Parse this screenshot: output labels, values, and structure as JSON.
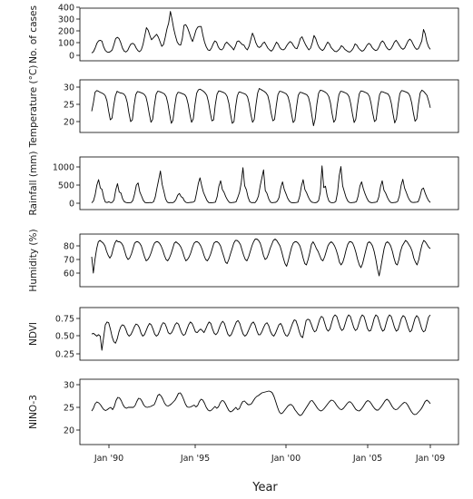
{
  "chart_data": {
    "type": "line",
    "xlabel": "Year",
    "x_ticks": [
      "Jan '90",
      "Jan '95",
      "Jan '00",
      "Jan '05",
      "Jan '09"
    ],
    "x_range": [
      "1989-01",
      "2009-01"
    ],
    "panels": [
      {
        "ylabel": "No. of cases",
        "ylim": [
          0,
          400
        ],
        "yticks": [
          "0",
          "100",
          "200",
          "300",
          "400"
        ],
        "values": [
          20,
          30,
          60,
          100,
          120,
          125,
          118,
          70,
          40,
          28,
          25,
          32,
          45,
          90,
          140,
          150,
          140,
          105,
          60,
          35,
          28,
          40,
          70,
          95,
          100,
          90,
          60,
          40,
          30,
          45,
          90,
          160,
          230,
          210,
          165,
          130,
          145,
          160,
          175,
          150,
          110,
          75,
          90,
          150,
          220,
          270,
          365,
          300,
          220,
          160,
          110,
          90,
          85,
          140,
          250,
          255,
          230,
          190,
          145,
          115,
          160,
          210,
          235,
          240,
          240,
          170,
          110,
          70,
          45,
          40,
          60,
          95,
          120,
          110,
          70,
          50,
          45,
          60,
          95,
          110,
          95,
          80,
          65,
          45,
          75,
          115,
          120,
          105,
          90,
          85,
          60,
          45,
          75,
          130,
          185,
          150,
          105,
          75,
          65,
          75,
          100,
          110,
          85,
          60,
          45,
          35,
          50,
          80,
          110,
          95,
          65,
          50,
          45,
          55,
          80,
          100,
          115,
          105,
          80,
          60,
          55,
          90,
          140,
          155,
          120,
          90,
          65,
          45,
          60,
          105,
          165,
          140,
          95,
          65,
          50,
          40,
          55,
          85,
          110,
          95,
          65,
          50,
          35,
          30,
          40,
          55,
          80,
          70,
          50,
          40,
          30,
          28,
          40,
          60,
          95,
          85,
          60,
          45,
          35,
          40,
          60,
          85,
          100,
          90,
          65,
          50,
          40,
          45,
          70,
          105,
          120,
          105,
          75,
          55,
          45,
          55,
          80,
          110,
          125,
          105,
          80,
          60,
          50,
          60,
          90,
          120,
          135,
          120,
          90,
          65,
          50,
          55,
          85,
          120,
          215,
          180,
          110,
          70,
          50
        ]
      },
      {
        "ylabel": "Temperature (°C)",
        "ylim": [
          18,
          31
        ],
        "yticks": [
          "20",
          "25",
          "30"
        ],
        "values": [
          23,
          25.5,
          28.5,
          29,
          28.8,
          28.5,
          28.3,
          28,
          27.5,
          26,
          23,
          20.5,
          21,
          24.5,
          27.5,
          28.8,
          28.5,
          28.3,
          28.2,
          28,
          27.3,
          25.5,
          22.5,
          20,
          20.5,
          24.5,
          27.8,
          28.7,
          28.6,
          28.4,
          28.2,
          27.9,
          27.2,
          25.2,
          22.3,
          19.8,
          20.6,
          24.6,
          27.9,
          28.8,
          28.7,
          28.5,
          28.3,
          28,
          27.2,
          25.3,
          22.2,
          19.5,
          20.4,
          24.4,
          27.6,
          28.5,
          28.4,
          28.2,
          28,
          27.8,
          27,
          25,
          22,
          19.8,
          20.8,
          25,
          28.2,
          29.2,
          29.4,
          29.1,
          28.8,
          28.3,
          27.6,
          25.6,
          22.6,
          20.2,
          20.5,
          24.8,
          27.9,
          28.9,
          28.8,
          28.6,
          28.4,
          28.1,
          27.3,
          25.3,
          22.2,
          19.5,
          20,
          24.2,
          27.5,
          28.6,
          28.5,
          28.3,
          28.1,
          27.9,
          27.2,
          25.2,
          22.1,
          19.8,
          20.6,
          24.8,
          28.3,
          29.6,
          29.3,
          29,
          28.7,
          28.3,
          27.5,
          25.5,
          22.4,
          20.2,
          20.6,
          24.6,
          27.8,
          28.8,
          28.7,
          28.5,
          28.3,
          28,
          27.2,
          25.2,
          22.2,
          19.7,
          20.4,
          24.4,
          27.6,
          28.5,
          28.4,
          28.2,
          28,
          27.8,
          27.1,
          25.1,
          22,
          18.8,
          20.8,
          25,
          28.2,
          29.1,
          29,
          28.8,
          28.5,
          28.1,
          27.3,
          25.4,
          22.3,
          19.8,
          20.6,
          24.6,
          27.8,
          28.8,
          28.7,
          28.5,
          28.3,
          28,
          27.2,
          25.2,
          22.2,
          19.7,
          20.7,
          24.8,
          28,
          28.9,
          28.8,
          28.6,
          28.4,
          28.1,
          27.3,
          25.3,
          22.4,
          20,
          20.5,
          24.6,
          27.8,
          28.7,
          28.6,
          28.4,
          28.2,
          28,
          27.2,
          25.2,
          22.1,
          19.6,
          20.8,
          25,
          28.1,
          29,
          28.9,
          28.7,
          28.5,
          28.2,
          27.4,
          25.4,
          22.4,
          20.1,
          20.8,
          25,
          28.3,
          29.1,
          28.8,
          28.2,
          27.6,
          26,
          24
        ]
      },
      {
        "ylabel": "Rainfall (mm)",
        "ylim": [
          0,
          1100
        ],
        "yticks": [
          "0",
          "500",
          "1000"
        ],
        "values": [
          10,
          60,
          230,
          500,
          650,
          420,
          380,
          150,
          30,
          20,
          40,
          15,
          25,
          90,
          370,
          540,
          310,
          280,
          120,
          40,
          20,
          10,
          15,
          20,
          80,
          260,
          500,
          560,
          310,
          200,
          80,
          20,
          10,
          15,
          20,
          15,
          40,
          180,
          420,
          650,
          890,
          520,
          330,
          120,
          30,
          10,
          20,
          15,
          35,
          100,
          220,
          270,
          180,
          150,
          60,
          20,
          15,
          20,
          25,
          30,
          60,
          280,
          540,
          700,
          480,
          300,
          190,
          80,
          20,
          10,
          15,
          20,
          30,
          180,
          470,
          620,
          380,
          300,
          180,
          90,
          25,
          15,
          20,
          25,
          40,
          160,
          300,
          560,
          980,
          480,
          370,
          160,
          40,
          15,
          20,
          15,
          80,
          200,
          480,
          690,
          920,
          350,
          270,
          120,
          30,
          15,
          20,
          25,
          60,
          160,
          430,
          590,
          380,
          260,
          140,
          60,
          20,
          10,
          15,
          20,
          30,
          190,
          470,
          650,
          380,
          290,
          170,
          80,
          30,
          20,
          15,
          25,
          70,
          300,
          1030,
          430,
          470,
          200,
          60,
          20,
          15,
          20,
          50,
          300,
          750,
          1010,
          480,
          320,
          160,
          60,
          20,
          15,
          20,
          25,
          45,
          200,
          470,
          590,
          400,
          260,
          150,
          60,
          25,
          15,
          20,
          25,
          40,
          170,
          450,
          620,
          360,
          280,
          160,
          70,
          20,
          15,
          20,
          25,
          50,
          200,
          490,
          660,
          420,
          300,
          170,
          80,
          30,
          20,
          25,
          30,
          45,
          180,
          380,
          420,
          280,
          160,
          70,
          20
        ]
      },
      {
        "ylabel": "Humidity (%)",
        "ylim": [
          56,
          90
        ],
        "yticks": [
          "60",
          "70",
          "80"
        ],
        "values": [
          72,
          60,
          70,
          78,
          83,
          84,
          83,
          82,
          80,
          76,
          73,
          71,
          73,
          78,
          82,
          84,
          83,
          83,
          82,
          80,
          76,
          72,
          70,
          71,
          74,
          78,
          82,
          83,
          83,
          82,
          80,
          76,
          72,
          69,
          70,
          72,
          75,
          79,
          82,
          83,
          83,
          82,
          80,
          77,
          73,
          70,
          69,
          71,
          74,
          78,
          82,
          83,
          82,
          81,
          79,
          76,
          72,
          69,
          70,
          72,
          75,
          79,
          82,
          83,
          83,
          82,
          80,
          77,
          73,
          70,
          69,
          71,
          74,
          78,
          82,
          83,
          83,
          82,
          80,
          76,
          72,
          68,
          67,
          70,
          74,
          78,
          82,
          84,
          84,
          83,
          81,
          77,
          73,
          70,
          69,
          72,
          76,
          80,
          83,
          85,
          85,
          84,
          82,
          78,
          73,
          70,
          71,
          74,
          78,
          81,
          84,
          85,
          84,
          82,
          80,
          76,
          71,
          67,
          65,
          69,
          74,
          79,
          82,
          83,
          83,
          82,
          80,
          76,
          71,
          67,
          66,
          70,
          75,
          81,
          83,
          81,
          78,
          76,
          73,
          70,
          69,
          72,
          76,
          80,
          82,
          83,
          82,
          80,
          77,
          73,
          68,
          66,
          68,
          72,
          77,
          81,
          83,
          83,
          82,
          79,
          75,
          70,
          66,
          64,
          67,
          72,
          77,
          82,
          83,
          82,
          80,
          76,
          70,
          63,
          58,
          64,
          71,
          78,
          82,
          83,
          82,
          80,
          76,
          71,
          67,
          66,
          70,
          76,
          80,
          82,
          84,
          83,
          81,
          79,
          76,
          71,
          68,
          66,
          70,
          76,
          81,
          84,
          83,
          81,
          79,
          78
        ]
      },
      {
        "ylabel": "NDVI",
        "ylim": [
          0.25,
          0.9
        ],
        "yticks": [
          "0.25",
          "0.50",
          "0.75"
        ],
        "values": [
          0.53,
          0.54,
          0.52,
          0.5,
          0.52,
          0.5,
          0.3,
          0.48,
          0.66,
          0.7,
          0.69,
          0.6,
          0.49,
          0.42,
          0.4,
          0.46,
          0.56,
          0.63,
          0.66,
          0.65,
          0.6,
          0.53,
          0.5,
          0.52,
          0.57,
          0.63,
          0.67,
          0.66,
          0.62,
          0.54,
          0.5,
          0.52,
          0.58,
          0.64,
          0.68,
          0.66,
          0.6,
          0.53,
          0.5,
          0.52,
          0.58,
          0.65,
          0.69,
          0.68,
          0.62,
          0.55,
          0.53,
          0.55,
          0.6,
          0.66,
          0.69,
          0.67,
          0.6,
          0.54,
          0.51,
          0.53,
          0.6,
          0.66,
          0.7,
          0.68,
          0.62,
          0.56,
          0.55,
          0.58,
          0.6,
          0.58,
          0.55,
          0.6,
          0.66,
          0.7,
          0.68,
          0.6,
          0.54,
          0.52,
          0.55,
          0.62,
          0.68,
          0.71,
          0.68,
          0.6,
          0.53,
          0.5,
          0.52,
          0.58,
          0.64,
          0.7,
          0.72,
          0.68,
          0.6,
          0.53,
          0.5,
          0.52,
          0.57,
          0.63,
          0.68,
          0.7,
          0.66,
          0.58,
          0.52,
          0.52,
          0.56,
          0.62,
          0.67,
          0.69,
          0.65,
          0.57,
          0.52,
          0.5,
          0.54,
          0.6,
          0.66,
          0.68,
          0.64,
          0.56,
          0.51,
          0.5,
          0.54,
          0.61,
          0.68,
          0.73,
          0.72,
          0.65,
          0.56,
          0.5,
          0.48,
          0.6,
          0.72,
          0.74,
          0.73,
          0.67,
          0.6,
          0.56,
          0.58,
          0.66,
          0.74,
          0.78,
          0.76,
          0.68,
          0.6,
          0.57,
          0.6,
          0.69,
          0.77,
          0.8,
          0.78,
          0.7,
          0.62,
          0.58,
          0.6,
          0.68,
          0.76,
          0.8,
          0.78,
          0.7,
          0.62,
          0.58,
          0.6,
          0.68,
          0.76,
          0.8,
          0.78,
          0.7,
          0.61,
          0.57,
          0.58,
          0.66,
          0.75,
          0.8,
          0.78,
          0.7,
          0.62,
          0.57,
          0.59,
          0.68,
          0.76,
          0.8,
          0.78,
          0.7,
          0.62,
          0.57,
          0.59,
          0.67,
          0.75,
          0.79,
          0.77,
          0.7,
          0.62,
          0.56,
          0.58,
          0.67,
          0.75,
          0.79,
          0.76,
          0.68,
          0.6,
          0.56,
          0.58,
          0.68,
          0.77,
          0.8
        ]
      },
      {
        "ylabel": "NINO-3",
        "ylim": [
          20,
          30
        ],
        "yticks": [
          "20",
          "25",
          "30"
        ],
        "values": [
          24.2,
          24.8,
          25.8,
          26.2,
          26,
          25.6,
          25,
          24.5,
          24.3,
          24.5,
          24.8,
          25,
          24.5,
          25.2,
          26.5,
          27.2,
          27.1,
          26.5,
          25.6,
          25,
          24.8,
          25,
          25,
          25,
          25,
          25.4,
          26.3,
          27,
          26.9,
          26.3,
          25.5,
          25.1,
          25,
          25.1,
          25.2,
          25.4,
          25.6,
          26.5,
          27.6,
          27.9,
          27.5,
          26.8,
          25.9,
          25.4,
          25.3,
          25.5,
          25.8,
          26.2,
          26.6,
          27.3,
          28.1,
          28.2,
          27.6,
          26.7,
          25.7,
          25.1,
          25,
          25.1,
          25.3,
          25.5,
          25.1,
          25.4,
          26.3,
          26.8,
          26.6,
          25.9,
          25,
          24.4,
          24.2,
          24.4,
          24.8,
          25.2,
          24.8,
          25.1,
          26,
          26.5,
          26.4,
          25.8,
          25,
          24.3,
          24,
          24.2,
          24.6,
          25,
          24.5,
          24.7,
          25.6,
          26.3,
          26.4,
          26,
          25.6,
          25.6,
          25.8,
          26.4,
          27,
          27.4,
          27.6,
          27.9,
          28.2,
          28.3,
          28.4,
          28.5,
          28.6,
          28.5,
          28.2,
          27.4,
          26.2,
          25,
          24,
          23.6,
          23.8,
          24.3,
          24.8,
          25.3,
          25.6,
          25.6,
          25.2,
          24.5,
          24,
          23.5,
          23.2,
          23.4,
          24,
          24.6,
          25.2,
          25.8,
          26.4,
          26.5,
          26,
          25.4,
          24.8,
          24.4,
          24.2,
          24.4,
          24.8,
          25.3,
          25.8,
          26.3,
          26.6,
          26.5,
          26.1,
          25.5,
          25,
          24.6,
          24.5,
          24.8,
          25.3,
          25.8,
          26.2,
          26.2,
          25.8,
          25.2,
          24.6,
          24.3,
          24.2,
          24.5,
          25,
          25.6,
          26.2,
          26.5,
          26.3,
          25.8,
          25.2,
          24.7,
          24.4,
          24.4,
          24.8,
          25.3,
          25.9,
          26.5,
          26.8,
          26.5,
          25.9,
          25.2,
          24.7,
          24.5,
          24.6,
          25,
          25.4,
          25.8,
          26.1,
          26,
          25.5,
          24.8,
          24.1,
          23.6,
          23.4,
          23.5,
          23.9,
          24.3,
          24.8,
          25.5,
          26.3,
          26.6,
          26.3,
          25.8
        ]
      }
    ]
  }
}
